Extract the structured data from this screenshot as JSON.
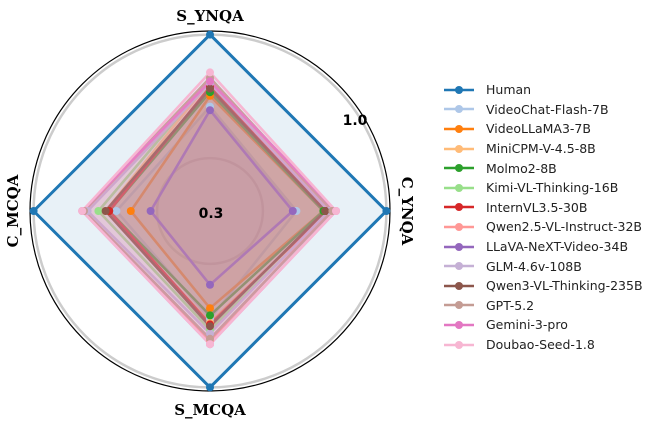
{
  "chart_data": {
    "type": "radar",
    "axes": [
      "S_YNQA",
      "C_YNQA",
      "S_MCQA",
      "C_MCQA"
    ],
    "rlim": [
      0,
      1.0
    ],
    "ring_ticks": [
      0.3,
      1.0
    ],
    "tick_labels": [
      "0.3",
      "1.0"
    ],
    "series": [
      {
        "name": "Human",
        "color": "#1f77b4",
        "values": [
          0.98,
          0.98,
          0.98,
          0.98
        ]
      },
      {
        "name": "VideoChat-Flash-7B",
        "color": "#aec7e8",
        "values": [
          0.58,
          0.48,
          0.6,
          0.52
        ]
      },
      {
        "name": "VideoLLaMA3-7B",
        "color": "#ff7f0e",
        "values": [
          0.64,
          0.63,
          0.54,
          0.44
        ]
      },
      {
        "name": "MiniCPM-V-4.5-8B",
        "color": "#ffbb78",
        "values": [
          0.72,
          0.66,
          0.62,
          0.58
        ]
      },
      {
        "name": "Molmo2-8B",
        "color": "#2ca02c",
        "values": [
          0.66,
          0.63,
          0.58,
          0.56
        ]
      },
      {
        "name": "Kimi-VL-Thinking-16B",
        "color": "#98df8a",
        "values": [
          0.73,
          0.67,
          0.66,
          0.62
        ]
      },
      {
        "name": "InternVL3.5-30B",
        "color": "#d62728",
        "values": [
          0.69,
          0.65,
          0.63,
          0.56
        ]
      },
      {
        "name": "Qwen2.5-VL-Instruct-32B",
        "color": "#ff9896",
        "values": [
          0.72,
          0.67,
          0.72,
          0.7
        ]
      },
      {
        "name": "LLaVA-NeXT-Video-34B",
        "color": "#9467bd",
        "values": [
          0.56,
          0.46,
          0.41,
          0.33
        ]
      },
      {
        "name": "GLM-4.6v-108B",
        "color": "#c5b0d5",
        "values": [
          0.71,
          0.66,
          0.68,
          0.68
        ]
      },
      {
        "name": "Qwen3-VL-Thinking-235B",
        "color": "#8c564b",
        "values": [
          0.68,
          0.64,
          0.64,
          0.58
        ]
      },
      {
        "name": "GPT-5.2",
        "color": "#c49c94",
        "values": [
          0.74,
          0.68,
          0.71,
          0.7
        ]
      },
      {
        "name": "Gemini-3-pro",
        "color": "#e377c2",
        "values": [
          0.72,
          0.7,
          0.74,
          0.71
        ]
      },
      {
        "name": "Doubao-Seed-1.8",
        "color": "#f7b6d2",
        "values": [
          0.77,
          0.7,
          0.74,
          0.71
        ]
      }
    ]
  }
}
